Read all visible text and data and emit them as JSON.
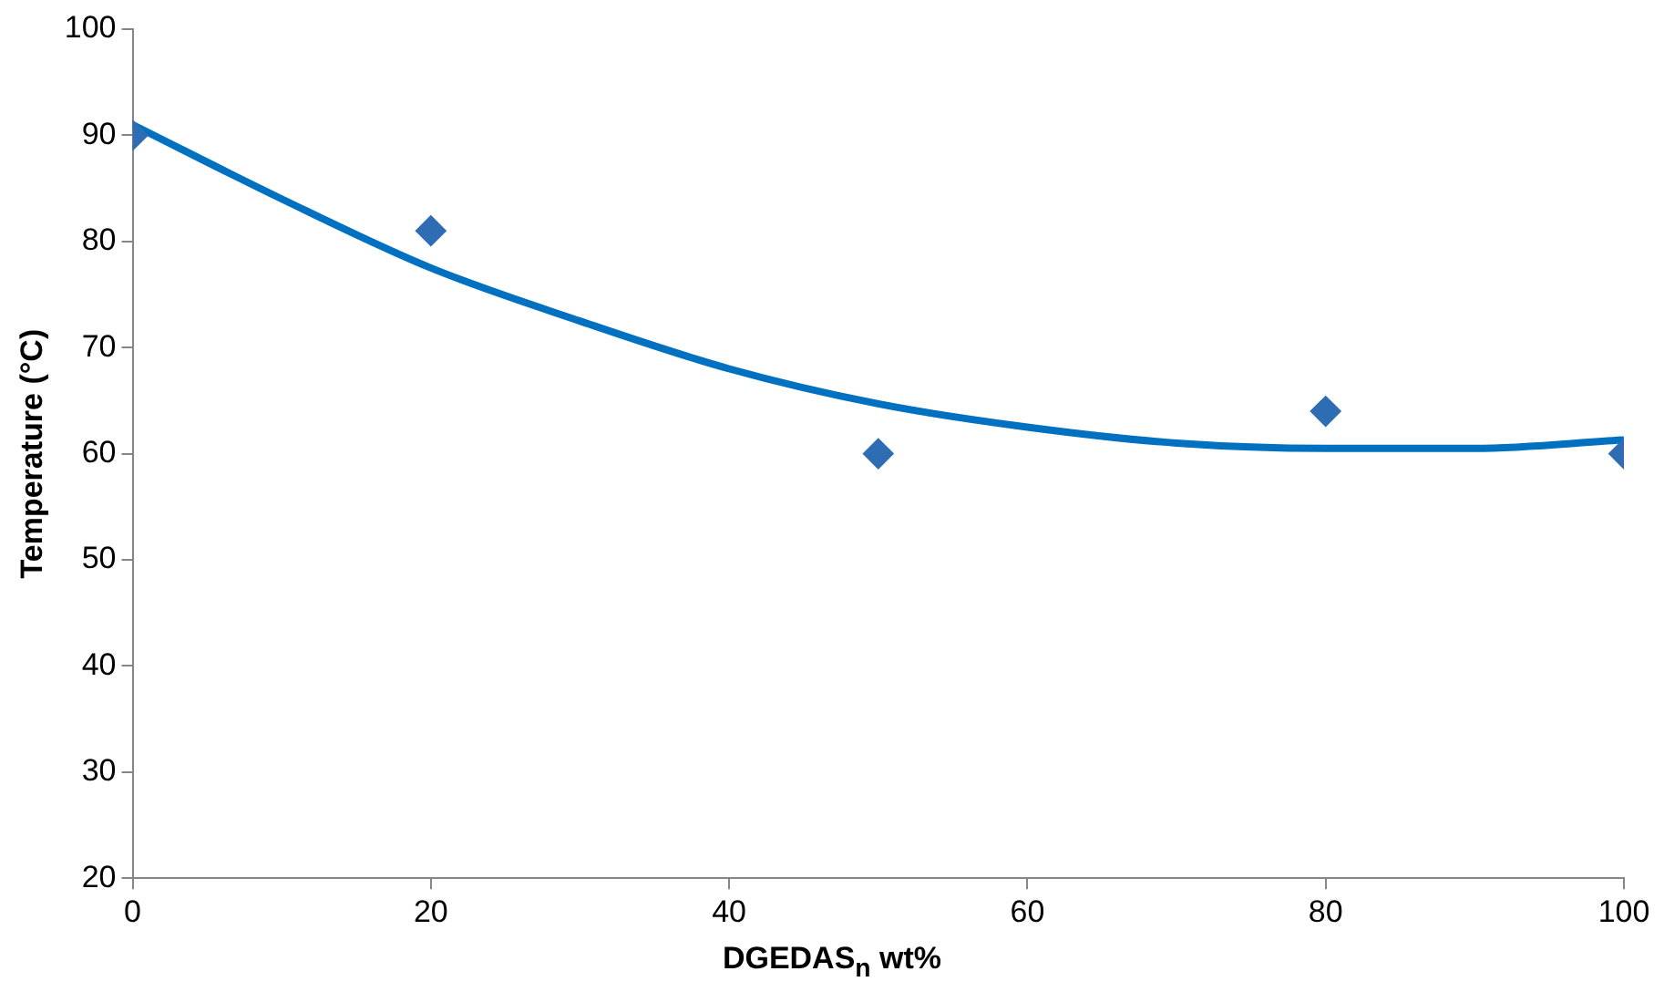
{
  "chart_data": {
    "type": "scatter",
    "xlabel": "DGEDAS$_{n}$ wt%",
    "ylabel": "Temperature (°C)",
    "xlim": [
      0,
      100
    ],
    "xticks": [
      0,
      20,
      40,
      60,
      80,
      100
    ],
    "ylim": [
      20,
      100
    ],
    "yticks": [
      20,
      30,
      40,
      50,
      60,
      70,
      80,
      90,
      100
    ],
    "grid": false,
    "legend": false,
    "series": [
      {
        "color": "#2e6db4",
        "marker": "diamond",
        "x": [
          0,
          20,
          50,
          80,
          100
        ],
        "values": [
          90,
          81,
          60,
          64,
          60
        ]
      },
      {
        "type": "line",
        "color": "#0070c0",
        "marker": "none",
        "line_style": "solid",
        "x": [
          0,
          10,
          20,
          30,
          40,
          50,
          60,
          70,
          80,
          90,
          100
        ],
        "values": [
          91,
          84,
          77.5,
          72.5,
          68,
          64.7,
          62.5,
          61,
          60.5,
          60.5,
          61.3
        ]
      }
    ]
  }
}
